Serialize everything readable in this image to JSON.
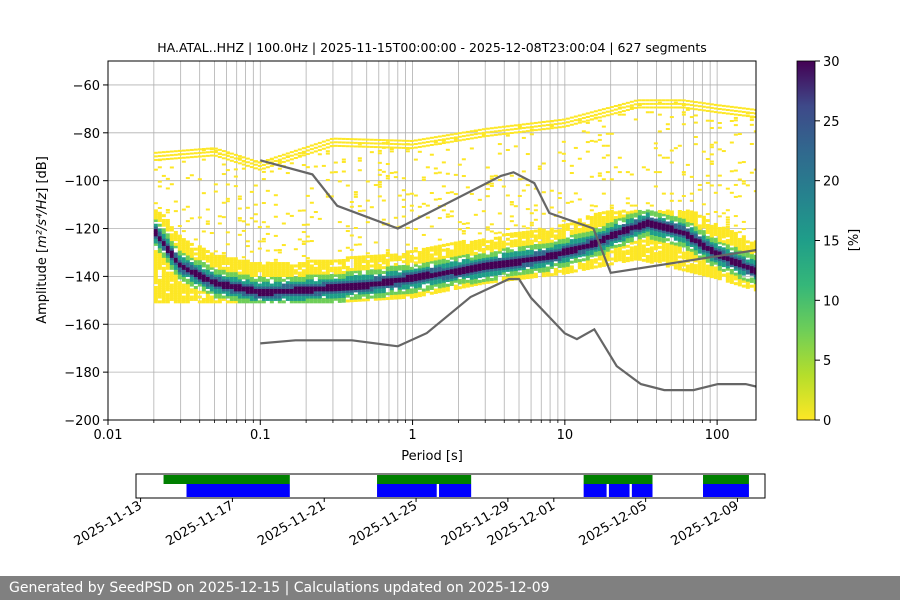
{
  "chart_data": {
    "type": "heatmap",
    "title": "HA.ATAL..HHZ | 100.0Hz | 2025-11-15T00:00:00 - 2025-12-08T23:00:04 | 627 segments",
    "xlabel": "Period [s]",
    "ylabel_prefix": "Amplitude [",
    "ylabel_math": "m²/s⁴/Hz",
    "ylabel_suffix": "] [dB]",
    "x_scale": "log",
    "xlim": [
      0.01,
      180
    ],
    "ylim": [
      -200,
      -50
    ],
    "x_ticks": [
      0.01,
      0.1,
      1,
      10,
      100
    ],
    "x_tick_labels": [
      "0.01",
      "0.1",
      "1",
      "10",
      "100"
    ],
    "y_ticks": [
      -200,
      -180,
      -160,
      -140,
      -120,
      -100,
      -80,
      -60
    ],
    "y_tick_labels": [
      "−200",
      "−180",
      "−160",
      "−140",
      "−120",
      "−100",
      "−80",
      "−60"
    ],
    "grid": true,
    "colorbar": {
      "label": "[%]",
      "range": [
        0,
        30
      ],
      "ticks": [
        0,
        5,
        10,
        15,
        20,
        25,
        30
      ],
      "tick_labels": [
        "0",
        "5",
        "10",
        "15",
        "20",
        "25",
        "30"
      ]
    },
    "noise_models": [
      {
        "name": "NHNM",
        "points": [
          [
            0.1,
            -91.5
          ],
          [
            0.22,
            -97.4
          ],
          [
            0.32,
            -110.5
          ],
          [
            0.8,
            -120
          ],
          [
            3.8,
            -98
          ],
          [
            4.6,
            -96.5
          ],
          [
            6.3,
            -101
          ],
          [
            7.9,
            -113.5
          ],
          [
            15.4,
            -120
          ],
          [
            20,
            -138.5
          ],
          [
            180,
            -129
          ]
        ]
      },
      {
        "name": "NLNM",
        "points": [
          [
            0.1,
            -168
          ],
          [
            0.17,
            -166.7
          ],
          [
            0.4,
            -166.7
          ],
          [
            0.8,
            -169.2
          ],
          [
            1.24,
            -163.7
          ],
          [
            2.4,
            -148.6
          ],
          [
            4.3,
            -141.1
          ],
          [
            5.0,
            -141.1
          ],
          [
            6.0,
            -149
          ],
          [
            10,
            -163.8
          ],
          [
            12,
            -166.2
          ],
          [
            15.6,
            -162.1
          ],
          [
            21.9,
            -177.5
          ],
          [
            31.6,
            -185
          ],
          [
            45,
            -187.5
          ],
          [
            70,
            -187.5
          ],
          [
            101,
            -185
          ],
          [
            154,
            -185
          ],
          [
            180,
            -186
          ]
        ]
      }
    ],
    "mode_curve": {
      "name": "mode",
      "points": [
        [
          0.02,
          -120
        ],
        [
          0.03,
          -135
        ],
        [
          0.05,
          -142
        ],
        [
          0.1,
          -146
        ],
        [
          0.2,
          -145
        ],
        [
          0.5,
          -143
        ],
        [
          1,
          -140
        ],
        [
          2,
          -137
        ],
        [
          4,
          -134
        ],
        [
          8,
          -131
        ],
        [
          15,
          -126
        ],
        [
          25,
          -120
        ],
        [
          35,
          -117
        ],
        [
          60,
          -121
        ],
        [
          100,
          -130
        ],
        [
          180,
          -137
        ]
      ]
    },
    "data_bands": [
      {
        "name": "upper-spread",
        "points": [
          [
            0.02,
            -88
          ],
          [
            0.05,
            -86
          ],
          [
            0.1,
            -92
          ],
          [
            0.3,
            -82
          ],
          [
            1,
            -83
          ],
          [
            3,
            -78
          ],
          [
            10,
            -74
          ],
          [
            30,
            -66
          ],
          [
            60,
            -66
          ],
          [
            100,
            -68
          ],
          [
            180,
            -70
          ]
        ]
      },
      {
        "name": "lower-spread",
        "points": [
          [
            0.1,
            -150
          ],
          [
            0.3,
            -150
          ],
          [
            1,
            -148
          ],
          [
            3,
            -142
          ],
          [
            10,
            -138
          ],
          [
            30,
            -132
          ],
          [
            100,
            -140
          ],
          [
            180,
            -145
          ]
        ]
      }
    ]
  },
  "availability": {
    "date_labels": [
      "2025-11-13",
      "2025-11-17",
      "2025-11-21",
      "2025-11-25",
      "2025-11-29",
      "2025-12-01",
      "2025-12-05",
      "2025-12-09"
    ],
    "date_ticks_day": [
      0,
      4,
      8,
      12,
      16,
      18,
      22,
      26
    ],
    "range_days": [
      -0.2,
      27.2
    ],
    "green_segments": [
      [
        1,
        6.5
      ],
      [
        10.3,
        14.4
      ],
      [
        19.3,
        22.3
      ],
      [
        24.5,
        26.5
      ]
    ],
    "blue_segments": [
      [
        2,
        6.5
      ],
      [
        10.3,
        12.9
      ],
      [
        13,
        14.4
      ],
      [
        19.3,
        20.3
      ],
      [
        20.4,
        21.3
      ],
      [
        21.4,
        22.3
      ],
      [
        24.5,
        26.5
      ]
    ],
    "colors": {
      "green": "#008000",
      "blue": "#0000ff"
    }
  },
  "footer": {
    "text": "Generated by SeedPSD on 2025-12-15 | Calculations updated on 2025-12-09"
  }
}
